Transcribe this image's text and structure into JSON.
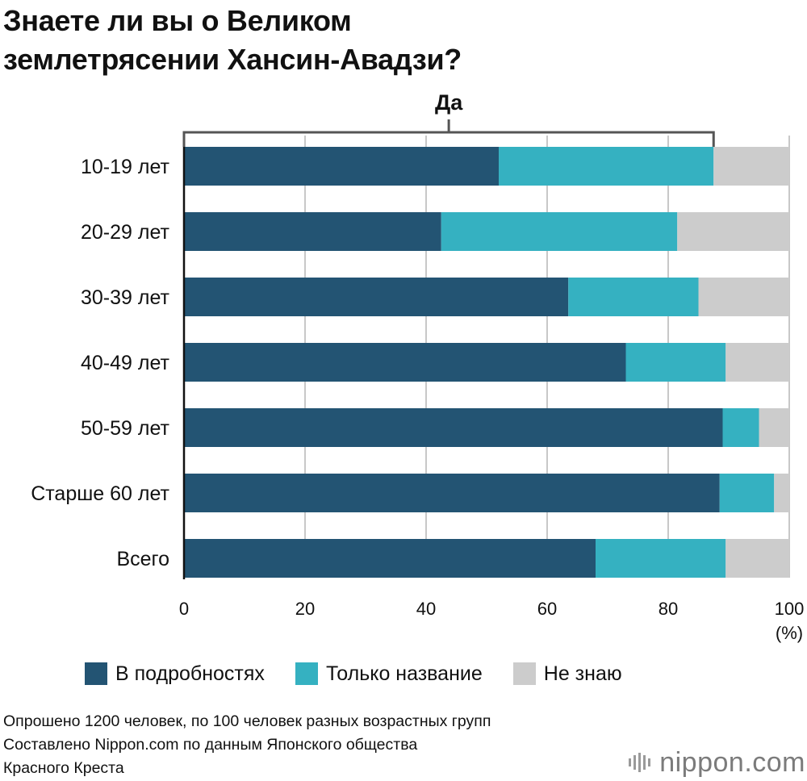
{
  "header": {
    "title_line1": "Знаете ли вы о Великом",
    "title_line2": "землетрясении Хансин-Авадзи?"
  },
  "chart_data": {
    "type": "bar",
    "orientation": "horizontal",
    "stacked": true,
    "title": "Знаете ли вы о Великом землетрясении Хансин-Авадзи?",
    "categories": [
      "10-19 лет",
      "20-29 лет",
      "30-39 лет",
      "40-49 лет",
      "50-59 лет",
      "Старше 60 лет",
      "Всего"
    ],
    "series": [
      {
        "name": "В подробностях",
        "color": "#235473",
        "values": [
          52.0,
          42.5,
          63.5,
          73.0,
          89.0,
          88.5,
          68.0
        ]
      },
      {
        "name": "Только название",
        "color": "#35b1c1",
        "values": [
          35.5,
          39.0,
          21.5,
          16.5,
          6.0,
          9.0,
          21.5
        ]
      },
      {
        "name": "Не знаю",
        "color": "#cccccc",
        "values": [
          12.5,
          18.5,
          15.0,
          10.5,
          5.0,
          2.5,
          10.5
        ]
      }
    ],
    "xlim": [
      0,
      100
    ],
    "xticks": [
      0,
      20,
      40,
      60,
      80,
      100
    ],
    "xunit": "(%)",
    "bracket_label": "Да",
    "grid": true,
    "legend_position": "bottom"
  },
  "notes": {
    "line1": "Опрошено 1200 человек, по 100 человек разных возрастных групп",
    "line2": "Составлено Nippon.com по данным Японского общества",
    "line3": "Красного Креста"
  },
  "logo": {
    "text": "nippon.com"
  }
}
